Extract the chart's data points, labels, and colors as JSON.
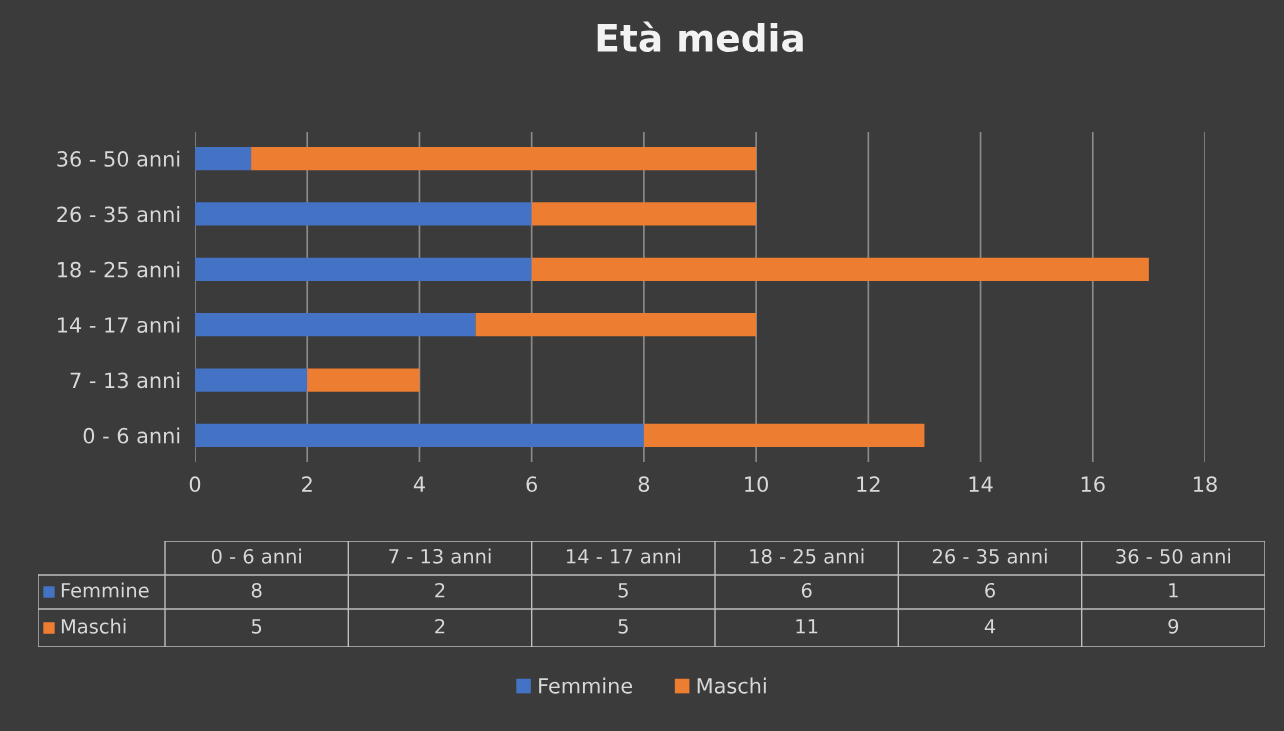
{
  "chart_data": [
    {
      "type": "bar",
      "title": "Età media",
      "orientation": "horizontal",
      "stacked": true,
      "categories": [
        "36 - 50 anni",
        "26 - 35 anni",
        "18 - 25 anni",
        "14 - 17 anni",
        "7 - 13 anni",
        "0 - 6 anni"
      ],
      "series": [
        {
          "name": "Femmine",
          "color": "#4472c4",
          "values": [
            1,
            6,
            6,
            5,
            2,
            8
          ]
        },
        {
          "name": "Maschi",
          "color": "#ed7d31",
          "values": [
            9,
            4,
            11,
            5,
            2,
            5
          ]
        }
      ],
      "xlim": [
        0,
        18
      ],
      "xticks": [
        0,
        2,
        4,
        6,
        8,
        10,
        12,
        14,
        16,
        18
      ],
      "grid": "x",
      "legend": "bottom"
    },
    {
      "type": "other",
      "categories": [
        "0 - 6 anni",
        "7 - 13 anni",
        "14 - 17 anni",
        "18 - 25 anni",
        "26 - 35 anni",
        "36 - 50 anni"
      ],
      "series": [
        {
          "name": "Femmine",
          "color": "#4472c4",
          "values": [
            8,
            2,
            5,
            6,
            6,
            1
          ]
        },
        {
          "name": "Maschi",
          "color": "#ed7d31",
          "values": [
            5,
            2,
            5,
            11,
            4,
            9
          ]
        }
      ],
      "data_labels": true
    }
  ]
}
